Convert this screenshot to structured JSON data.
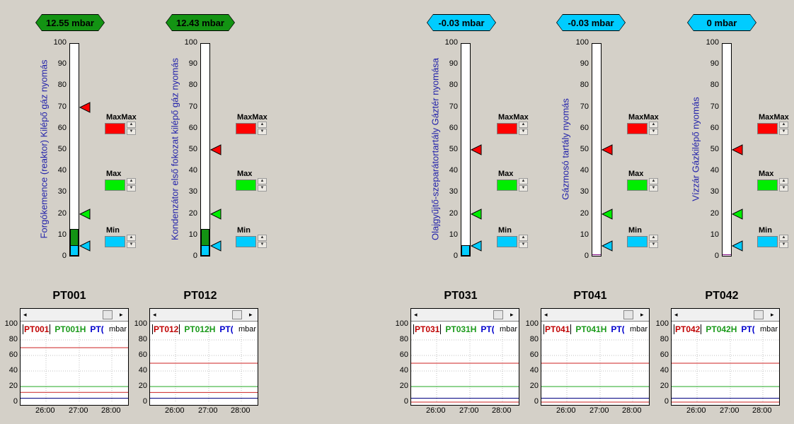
{
  "colors": {
    "badge_green": "#139313",
    "badge_cyan": "#00ccff",
    "maxmax": "#ff0000",
    "max": "#00ee00",
    "min": "#00ccff",
    "label_blue": "#2222aa"
  },
  "gauge_ticks": [
    "100",
    "90",
    "80",
    "70",
    "60",
    "50",
    "40",
    "30",
    "20",
    "10",
    "0"
  ],
  "limit_labels": {
    "maxmax": "MaxMax",
    "max": "Max",
    "min": "Min"
  },
  "trend_yticks": [
    "100",
    "80",
    "60",
    "40",
    "20",
    "0"
  ],
  "trend_xticks": [
    "26:00",
    "27:00",
    "28:00"
  ],
  "trend_unit": "mbar",
  "sensors": [
    {
      "id": "PT001",
      "badge": "12.55 mbar",
      "badge_color": "green",
      "label": "Forgókemence (reaktor) Kilépő gáz nyomás",
      "value": 12.55,
      "maxmax": 70,
      "max": 20,
      "min": 5,
      "legend": [
        "PT001",
        "PT001H",
        "PT("
      ]
    },
    {
      "id": "PT012",
      "badge": "12.43 mbar",
      "badge_color": "green",
      "label": "Kondenzátor első fokozat kilépő gáz nyomás",
      "value": 12.43,
      "maxmax": 50,
      "max": 20,
      "min": 5,
      "legend": [
        "PT012",
        "PT012H",
        "PT("
      ]
    },
    {
      "id": "PT031",
      "badge": "-0.03  mbar",
      "badge_color": "cyan",
      "label": "Olajgyűjtő-szeparátortartály Gáztér nyomása",
      "value": -0.03,
      "maxmax": 50,
      "max": 20,
      "min": 5,
      "legend": [
        "PT031",
        "PT031H",
        "PT("
      ]
    },
    {
      "id": "PT041",
      "badge": "-0.03  mbar",
      "badge_color": "cyan",
      "label": "Gázmosó tartály nyomás",
      "value": -0.03,
      "maxmax": 50,
      "max": 20,
      "min": 5,
      "legend": [
        "PT041",
        "PT041H",
        "PT("
      ]
    },
    {
      "id": "PT042",
      "badge": "0  mbar",
      "badge_color": "cyan",
      "label": "Vízzár Gázkilépő nyomás",
      "value": 0,
      "maxmax": 50,
      "max": 20,
      "min": 5,
      "legend": [
        "PT042",
        "PT042H",
        "PT("
      ]
    }
  ]
}
